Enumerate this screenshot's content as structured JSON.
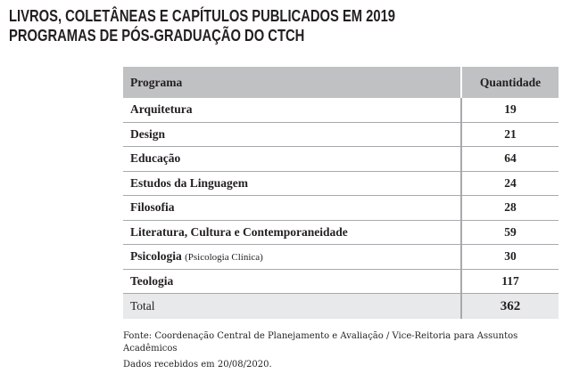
{
  "title": {
    "line1": "LIVROS, COLETÂNEAS E CAPÍTULOS PUBLICADOS EM 2019",
    "line2": "PROGRAMAS DE PÓS-GRADUAÇÃO DO CTCH"
  },
  "table": {
    "headers": {
      "programa": "Programa",
      "quantidade": "Quantidade"
    },
    "rows": [
      {
        "programa": "Arquitetura",
        "quantidade": "19"
      },
      {
        "programa": "Design",
        "quantidade": "21"
      },
      {
        "programa": "Educação",
        "quantidade": "64"
      },
      {
        "programa": "Estudos da Linguagem",
        "quantidade": "24"
      },
      {
        "programa": "Filosofia",
        "quantidade": "28"
      },
      {
        "programa": "Literatura, Cultura e Contemporaneidade",
        "quantidade": "59"
      },
      {
        "programa": "Psicologia",
        "note": "(Psicologia Clínica)",
        "quantidade": "30"
      },
      {
        "programa": "Teologia",
        "quantidade": "117"
      }
    ],
    "total": {
      "label": "Total",
      "quantidade": "362"
    }
  },
  "footer": {
    "source_line1": "Fonte: Coordenação Central de Planejamento e Avaliação / Vice-Reitoria para Assuntos",
    "source_line2": "Acadêmicos",
    "date": "Dados recebidos em 20/08/2020."
  }
}
